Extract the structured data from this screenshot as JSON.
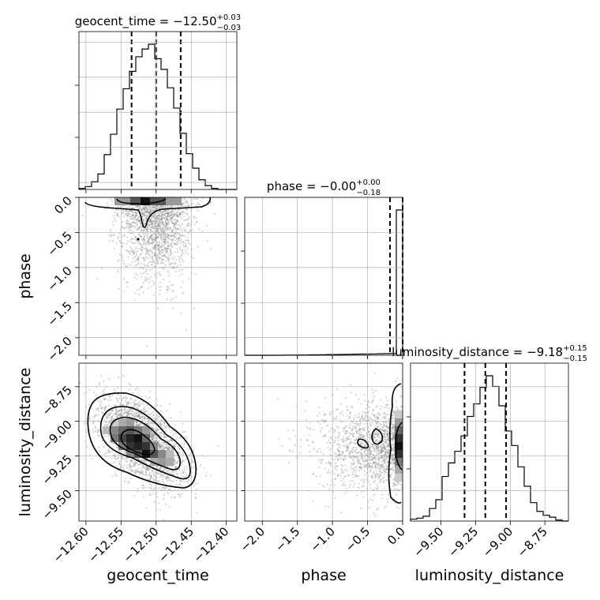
{
  "chart_data": {
    "type": "corner",
    "parameters": [
      "geocent_time",
      "phase",
      "luminosity_distance"
    ],
    "axis_labels": {
      "x": [
        "geocent_time",
        "phase",
        "luminosity_distance"
      ],
      "y": [
        "",
        "phase",
        "luminosity_distance"
      ]
    },
    "titles": [
      {
        "name": "geocent_time",
        "median": "−12.50",
        "plus": "+0.03",
        "minus": "−0.03"
      },
      {
        "name": "phase",
        "median": "−0.00",
        "plus": "+0.00",
        "minus": "−0.18"
      },
      {
        "name": "luminosity_distance",
        "median": "−9.18",
        "plus": "+0.15",
        "minus": "−0.15"
      }
    ],
    "ranges": {
      "geocent_time": [
        -12.61,
        -12.385
      ],
      "phase": [
        -2.25,
        0.0
      ],
      "luminosity_distance": [
        -9.72,
        -8.58
      ]
    },
    "ticks": {
      "geocent_time": [
        -12.6,
        -12.55,
        -12.5,
        -12.45,
        -12.4
      ],
      "phase": [
        -2.0,
        -1.5,
        -1.0,
        -0.5,
        0.0
      ],
      "luminosity_distance": [
        -9.5,
        -9.25,
        -9.0,
        -8.75
      ]
    },
    "tick_labels": {
      "geocent_time": [
        "−12.60",
        "−12.55",
        "−12.50",
        "−12.45",
        "−12.40"
      ],
      "phase": [
        "−2.0",
        "−1.5",
        "−1.0",
        "−0.5",
        "0.0"
      ],
      "luminosity_distance": [
        "−9.50",
        "−9.25",
        "−9.00",
        "−8.75"
      ]
    },
    "quantiles": {
      "geocent_time": [
        -12.535,
        -12.5,
        -12.465
      ],
      "phase": [
        -0.18,
        -0.0
      ],
      "luminosity_distance": [
        -9.33,
        -9.18,
        -9.03
      ]
    },
    "histograms": {
      "geocent_time": {
        "edges": [
          -12.61,
          -12.601,
          -12.592,
          -12.583,
          -12.574,
          -12.565,
          -12.556,
          -12.547,
          -12.538,
          -12.529,
          -12.52,
          -12.511,
          -12.502,
          -12.493,
          -12.484,
          -12.475,
          -12.466,
          -12.457,
          -12.448,
          -12.439,
          -12.43,
          -12.421,
          -12.412,
          -12.403,
          -12.394,
          -12.385
        ],
        "counts": [
          1,
          3,
          8,
          16,
          36,
          57,
          83,
          104,
          122,
          137,
          145,
          150,
          135,
          124,
          105,
          84,
          58,
          37,
          22,
          10,
          4,
          1,
          0,
          0,
          0
        ]
      },
      "phase": {
        "edges": [
          -2.25,
          -2.16,
          -2.07,
          -1.98,
          -1.89,
          -1.8,
          -1.71,
          -1.62,
          -1.53,
          -1.44,
          -1.35,
          -1.26,
          -1.17,
          -1.08,
          -0.99,
          -0.9,
          -0.81,
          -0.72,
          -0.63,
          -0.54,
          -0.45,
          -0.36,
          -0.27,
          -0.18,
          -0.09,
          0.0
        ],
        "counts": [
          0,
          0,
          0,
          0,
          0,
          0,
          1,
          1,
          2,
          2,
          3,
          3,
          4,
          5,
          5,
          6,
          7,
          8,
          9,
          9,
          10,
          11,
          12,
          13,
          1100
        ]
      },
      "luminosity_distance": {
        "edges": [
          -9.72,
          -9.6744,
          -9.6288,
          -9.5832,
          -9.5376,
          -9.492,
          -9.4464,
          -9.4008,
          -9.3552,
          -9.3096,
          -9.264,
          -9.2184,
          -9.1728,
          -9.1272,
          -9.0816,
          -9.036,
          -8.9904,
          -8.9448,
          -8.8992,
          -8.8536,
          -8.808,
          -8.7624,
          -8.7168,
          -8.6712,
          -8.6256,
          -8.58
        ],
        "counts": [
          2,
          3,
          5,
          13,
          22,
          46,
          60,
          72,
          88,
          108,
          121,
          138,
          150,
          139,
          119,
          93,
          78,
          56,
          36,
          19,
          10,
          6,
          4,
          1,
          0
        ]
      }
    },
    "density_centers": {
      "phase_vs_geocent_time": {
        "x": -12.5,
        "y": -0.0
      },
      "luminosity_distance_vs_geocent_time": {
        "x": -12.52,
        "y": -9.15
      },
      "luminosity_distance_vs_phase": {
        "x": -0.0,
        "y": -9.18
      }
    },
    "grid": true,
    "colors": {
      "line": "#000000",
      "points": "#888888",
      "grid": "#b0b0b0"
    }
  }
}
